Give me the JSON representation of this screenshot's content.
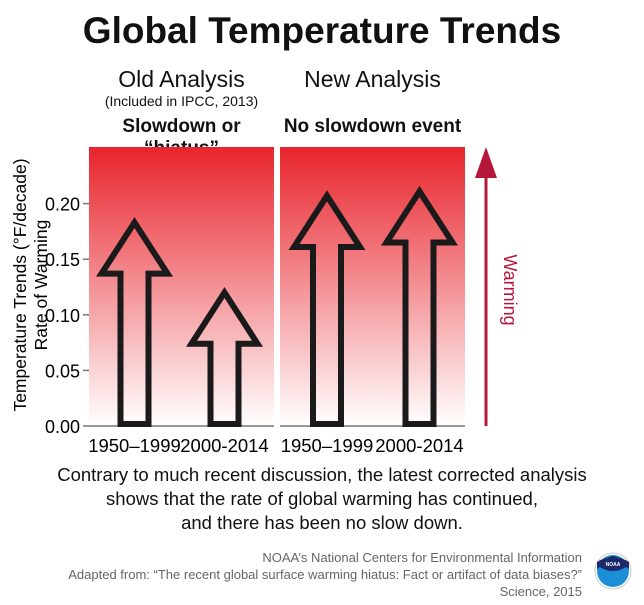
{
  "title": "Global Temperature Trends",
  "panels": [
    {
      "heading": "Old Analysis",
      "subheading": "(Included in IPCC, 2013)",
      "label": "Slowdown or “hiatus”"
    },
    {
      "heading": "New Analysis",
      "subheading": "",
      "label": "No slowdown event"
    }
  ],
  "caption": [
    "Contrary to much recent discussion, the latest corrected analysis",
    "shows that the rate of global warming has continued,",
    "and there has been no slow down."
  ],
  "source": [
    "NOAA’s National Centers for Environmental Information",
    "Adapted from: “The recent global surface warming hiatus: Fact or artifact of data biases?”",
    "Science, 2015"
  ],
  "logo_text": "NOAA",
  "warming_label": "Warming",
  "colors": {
    "gradient_top": "#e8242c",
    "gradient_bottom": "#ffffff",
    "warming_arrow": "#b5173a",
    "arrow_outline": "#1a1a1a"
  },
  "chart_data": {
    "type": "bar",
    "mark": "arrow",
    "ylabel": [
      "Temperature Trends (°F/decade)",
      "Rate of Warming"
    ],
    "ylim": [
      0,
      0.25
    ],
    "yticks": [
      "0.00",
      "0.05",
      "0.10",
      "0.15",
      "0.20"
    ],
    "grid": false,
    "groups": [
      {
        "name": "Old Analysis",
        "categories": [
          "1950–1999",
          "2000-2014"
        ],
        "values": [
          0.183,
          0.12
        ]
      },
      {
        "name": "New Analysis",
        "categories": [
          "1950–1999",
          "2000-2014"
        ],
        "values": [
          0.207,
          0.211
        ]
      }
    ]
  }
}
